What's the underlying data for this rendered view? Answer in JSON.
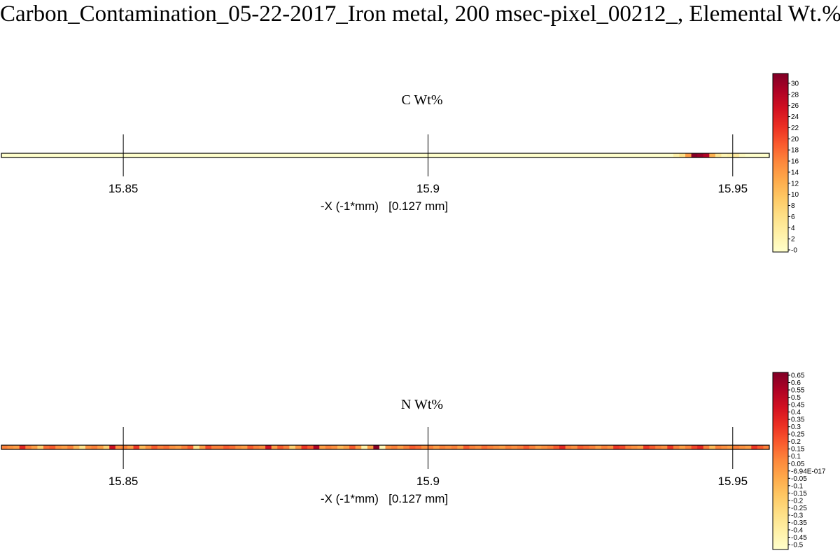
{
  "title": "Carbon_Contamination_05-22-2017_Iron metal, 200 msec-pixel_00212_, Elemental Wt.%",
  "colormap": [
    "#ffffcc",
    "#fff1a8",
    "#fee087",
    "#fec965",
    "#feab4b",
    "#fd893c",
    "#fa5c2e",
    "#ec3023",
    "#d31121",
    "#af0225",
    "#800026"
  ],
  "chart_data": [
    {
      "type": "heatmap",
      "title": "C Wt%",
      "xlabel": "-X (-1*mm)   [0.127 mm]",
      "xlim": [
        15.83,
        15.956
      ],
      "xticks": [
        15.85,
        15.9,
        15.95
      ],
      "xtick_labels": [
        "15.85",
        "15.9",
        "15.95"
      ],
      "value_range": [
        0,
        31.5
      ],
      "pixel_values": [
        0,
        0,
        0,
        0,
        0,
        0,
        0,
        0,
        0,
        0,
        0,
        0,
        0,
        0,
        0,
        0,
        0,
        0,
        0,
        0,
        0,
        0,
        0,
        0,
        0,
        0,
        0,
        0,
        0,
        0,
        0,
        0,
        0,
        0,
        0,
        0,
        0,
        0,
        0,
        0,
        0,
        0,
        0,
        0,
        0,
        0,
        0,
        0,
        0,
        0,
        0,
        0,
        0,
        0,
        0,
        0,
        0,
        0,
        0,
        0,
        0,
        0,
        0,
        0,
        0,
        0,
        0,
        0,
        0,
        0,
        0,
        0,
        0,
        0,
        0,
        0,
        0,
        0,
        0,
        0,
        0,
        0,
        0,
        0,
        0,
        0,
        0,
        0,
        0,
        0,
        0,
        0,
        0,
        0,
        0,
        0,
        0,
        0,
        0,
        0,
        0,
        0,
        0,
        0,
        0,
        0,
        0,
        0,
        0,
        0,
        0,
        0,
        3,
        6,
        14,
        31,
        30,
        28,
        12,
        5,
        2,
        3,
        4,
        1,
        0,
        0,
        0,
        0
      ],
      "colorbar_labels": [
        "30",
        "28",
        "26",
        "24",
        "22",
        "20",
        "18",
        "16",
        "14",
        "12",
        "10",
        "8",
        "6",
        "4",
        "2",
        "-0"
      ]
    },
    {
      "type": "heatmap",
      "title": "N Wt%",
      "xlabel": "-X (-1*mm)   [0.127 mm]",
      "xlim": [
        15.83,
        15.956
      ],
      "xticks": [
        15.85,
        15.9,
        15.95
      ],
      "xtick_labels": [
        "15.85",
        "15.9",
        "15.95"
      ],
      "value_range": [
        -0.52,
        0.67
      ],
      "pixel_values": [
        0.1,
        0.05,
        0.0,
        0.35,
        0.1,
        0.0,
        -0.2,
        0.15,
        0.2,
        0.05,
        0.0,
        0.1,
        -0.1,
        -0.3,
        0.05,
        0.1,
        0.0,
        -0.2,
        0.45,
        0.05,
        0.1,
        0.0,
        0.3,
        -0.1,
        0.05,
        0.2,
        0.1,
        0.15,
        0.05,
        0.0,
        0.1,
        0.2,
        -0.3,
        0.0,
        0.25,
        0.1,
        0.1,
        0.2,
        0.15,
        0.05,
        0.0,
        0.2,
        0.1,
        0.05,
        0.45,
        0.0,
        0.2,
        0.1,
        -0.2,
        0.05,
        0.3,
        0.2,
        0.55,
        0.0,
        0.1,
        0.05,
        -0.1,
        0.0,
        0.2,
        0.0,
        -0.4,
        0.0,
        0.65,
        -0.45,
        0.05,
        0.1,
        0.0,
        0.1,
        0.2,
        0.15,
        0.05,
        0.1,
        0.0,
        0.1,
        0.05,
        0.1,
        0.0,
        0.2,
        0.1,
        0.05,
        0.15,
        0.1,
        0.05,
        0.0,
        0.1,
        0.05,
        0.1,
        0.2,
        0.1,
        0.0,
        0.05,
        0.1,
        0.2,
        0.35,
        0.1,
        0.05,
        0.2,
        0.15,
        0.1,
        0.0,
        0.1,
        0.05,
        0.3,
        0.25,
        0.1,
        0.05,
        0.0,
        0.3,
        0.2,
        0.1,
        0.05,
        0.3,
        0.1,
        0.0,
        0.1,
        0.25,
        0.35,
        0.1,
        -0.1,
        0.1,
        0.05,
        0.0,
        0.1,
        0.05,
        0.0,
        0.3,
        0.2,
        0.1
      ],
      "colorbar_labels": [
        "0.65",
        "0.6",
        "0.55",
        "0.5",
        "0.45",
        "0.4",
        "0.35",
        "0.3",
        "0.25",
        "0.2",
        "0.15",
        "0.1",
        "0.05",
        "-6.94E-017",
        "-0.05",
        "-0.1",
        "-0.15",
        "-0.2",
        "-0.25",
        "-0.3",
        "-0.35",
        "-0.4",
        "-0.45",
        "-0.5"
      ]
    }
  ]
}
